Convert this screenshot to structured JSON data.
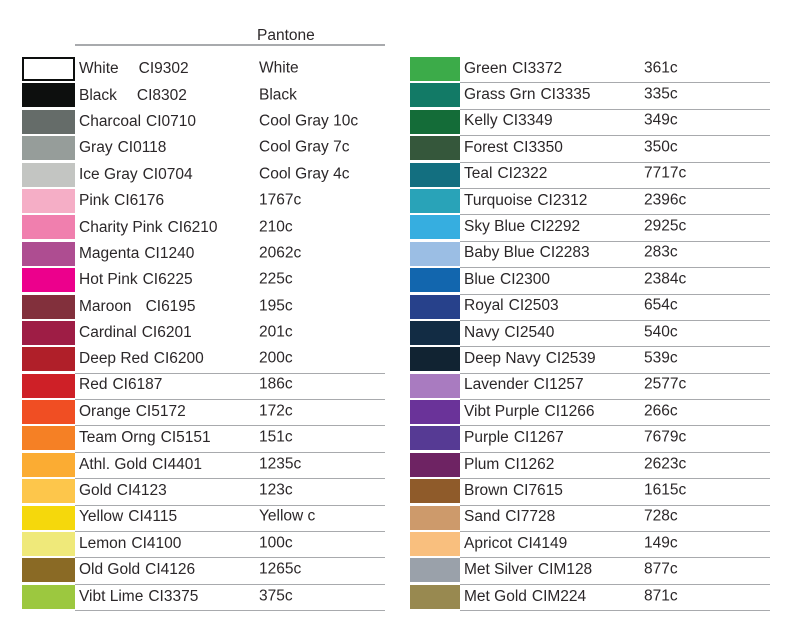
{
  "header": {
    "title": "Pantone"
  },
  "columns": {
    "left": {
      "rows": [
        {
          "name": "White",
          "code": "CI9302",
          "pantone": "White",
          "hex": "#ffffff"
        },
        {
          "name": "Black",
          "code": "CI8302",
          "pantone": "Black",
          "hex": "#0d0f0e"
        },
        {
          "name": "Charcoal",
          "code": "CI0710",
          "pantone": "Cool Gray 10c",
          "hex": "#656c69"
        },
        {
          "name": "Gray",
          "code": "CI0118",
          "pantone": "Cool Gray 7c",
          "hex": "#969d9a"
        },
        {
          "name": "Ice Gray",
          "code": "CI0704",
          "pantone": "Cool Gray 4c",
          "hex": "#c3c5c2"
        },
        {
          "name": "Pink",
          "code": "CI6176",
          "pantone": "1767c",
          "hex": "#f5aec6"
        },
        {
          "name": "Charity Pink",
          "code": "CI6210",
          "pantone": "210c",
          "hex": "#f07fae"
        },
        {
          "name": "Magenta",
          "code": "CI1240",
          "pantone": "2062c",
          "hex": "#ae4d91"
        },
        {
          "name": "Hot Pink",
          "code": "CI6225",
          "pantone": "225c",
          "hex": "#ec008c"
        },
        {
          "name": "Maroon",
          "code": "CI6195",
          "pantone": "195c",
          "hex": "#82303c"
        },
        {
          "name": "Cardinal",
          "code": "CI6201",
          "pantone": "201c",
          "hex": "#9e1d45"
        },
        {
          "name": "Deep Red",
          "code": "CI6200",
          "pantone": "200c",
          "hex": "#b01f29"
        },
        {
          "name": "Red",
          "code": "CI6187",
          "pantone": "186c",
          "hex": "#ce2027"
        },
        {
          "name": "Orange",
          "code": "CI5172",
          "pantone": "172c",
          "hex": "#f04e23"
        },
        {
          "name": "Team Orng",
          "code": "CI5151",
          "pantone": "151c",
          "hex": "#f58025"
        },
        {
          "name": "Athl. Gold",
          "code": "CI4401",
          "pantone": "1235c",
          "hex": "#fbac33"
        },
        {
          "name": "Gold",
          "code": "CI4123",
          "pantone": "123c",
          "hex": "#fdc64b"
        },
        {
          "name": "Yellow",
          "code": "CI4115",
          "pantone": "Yellow c",
          "hex": "#f5d80c"
        },
        {
          "name": "Lemon",
          "code": "CI4100",
          "pantone": "100c",
          "hex": "#efe97a"
        },
        {
          "name": "Old Gold",
          "code": "CI4126",
          "pantone": "1265c",
          "hex": "#8a6a25"
        },
        {
          "name": "Vibt Lime",
          "code": "CI3375",
          "pantone": "375c",
          "hex": "#9cc83f"
        }
      ]
    },
    "right": {
      "rows": [
        {
          "name": "Green",
          "code": "CI3372",
          "pantone": "361c",
          "hex": "#3cab49"
        },
        {
          "name": "Grass Grn",
          "code": "CI3335",
          "pantone": "335c",
          "hex": "#127a66"
        },
        {
          "name": "Kelly",
          "code": "CI3349",
          "pantone": "349c",
          "hex": "#146c38"
        },
        {
          "name": "Forest",
          "code": "CI3350",
          "pantone": "350c",
          "hex": "#35573b"
        },
        {
          "name": "Teal",
          "code": "CI2322",
          "pantone": "7717c",
          "hex": "#136f80"
        },
        {
          "name": "Turquoise",
          "code": "CI2312",
          "pantone": "2396c",
          "hex": "#29a3b8"
        },
        {
          "name": "Sky Blue",
          "code": "CI2292",
          "pantone": "2925c",
          "hex": "#36aee0"
        },
        {
          "name": "Baby Blue",
          "code": "CI2283",
          "pantone": "283c",
          "hex": "#9bbee4"
        },
        {
          "name": "Blue",
          "code": "CI2300",
          "pantone": "2384c",
          "hex": "#1266ae"
        },
        {
          "name": "Royal",
          "code": "CI2503",
          "pantone": "654c",
          "hex": "#27418b"
        },
        {
          "name": "Navy",
          "code": "CI2540",
          "pantone": "540c",
          "hex": "#122c44"
        },
        {
          "name": "Deep Navy",
          "code": "CI2539",
          "pantone": "539c",
          "hex": "#112332"
        },
        {
          "name": "Lavender",
          "code": "CI1257",
          "pantone": "2577c",
          "hex": "#a97bc0"
        },
        {
          "name": "Vibt Purple",
          "code": "CI1266",
          "pantone": "266c",
          "hex": "#6a3399"
        },
        {
          "name": "Purple",
          "code": "CI1267",
          "pantone": "7679c",
          "hex": "#563a94"
        },
        {
          "name": "Plum",
          "code": "CI1262",
          "pantone": "2623c",
          "hex": "#6e2363"
        },
        {
          "name": "Brown",
          "code": "CI7615",
          "pantone": "1615c",
          "hex": "#8f5b2a"
        },
        {
          "name": "Sand",
          "code": "CI7728",
          "pantone": "728c",
          "hex": "#cd9a6b"
        },
        {
          "name": "Apricot",
          "code": "CI4149",
          "pantone": "149c",
          "hex": "#f9bf7e"
        },
        {
          "name": "Met Silver",
          "code": "CIM128",
          "pantone": "877c",
          "hex": "#9aa1aa"
        },
        {
          "name": "Met Gold",
          "code": "CIM224",
          "pantone": "871c",
          "hex": "#988950"
        }
      ]
    }
  }
}
